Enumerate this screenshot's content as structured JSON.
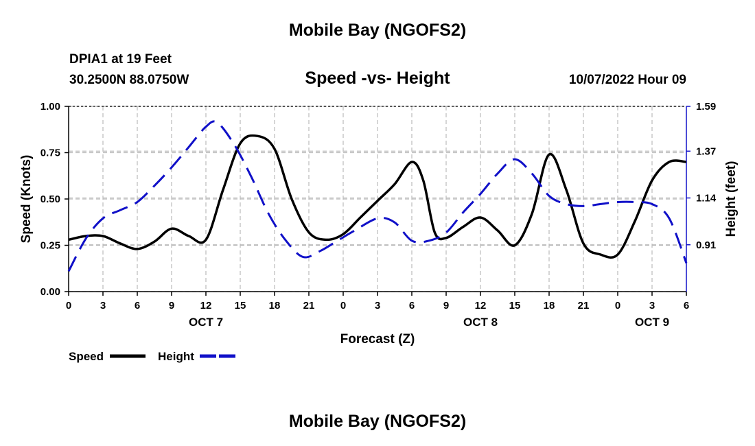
{
  "header": {
    "title": "Mobile Bay (NGOFS2)",
    "station": "DPIA1 at 19 Feet",
    "coords": "30.2500N  88.0750W",
    "subtitle": "Speed -vs- Height",
    "datetime": "10/07/2022 Hour 09"
  },
  "footer": {
    "title": "Mobile Bay (NGOFS2)"
  },
  "colors": {
    "speed": "#000000",
    "height": "#1010c8",
    "grid": "#bbbbbb"
  },
  "chart_data": {
    "type": "line",
    "title": "Speed -vs- Height",
    "xlabel": "Forecast (Z)",
    "ylabel": "Speed (Knots)",
    "y2label": "Height (feet)",
    "x_ticks": [
      0,
      3,
      6,
      9,
      12,
      15,
      18,
      21,
      24,
      27,
      30,
      33,
      36,
      39,
      42,
      45,
      48,
      51,
      54
    ],
    "x_tick_labels": [
      "0",
      "3",
      "6",
      "9",
      "12",
      "15",
      "18",
      "21",
      "0",
      "3",
      "6",
      "9",
      "12",
      "15",
      "18",
      "21",
      "0",
      "3",
      "6"
    ],
    "day_labels": [
      {
        "x": 12,
        "label": "OCT 7"
      },
      {
        "x": 36,
        "label": "OCT 8"
      },
      {
        "x": 51,
        "label": "OCT 9"
      }
    ],
    "xlim": [
      0,
      54
    ],
    "ylim": [
      0,
      1.0
    ],
    "y_ticks": [
      0,
      0.25,
      0.5,
      0.75,
      1.0
    ],
    "y_tick_labels": [
      "0.00",
      "0.25",
      "0.50",
      "0.75",
      "1.00"
    ],
    "y2lim": [
      0.68,
      1.59
    ],
    "y2_ticks": [
      0.91,
      1.14,
      1.37,
      1.59
    ],
    "y2_tick_labels": [
      "0.91",
      "1.14",
      "1.37",
      "1.59"
    ],
    "grid": true,
    "series": [
      {
        "name": "Speed",
        "axis": "left",
        "style": "solid",
        "x": [
          0,
          1.5,
          3,
          4.5,
          6,
          7.5,
          9,
          10.5,
          12,
          13.5,
          15,
          16.5,
          18,
          19.5,
          21,
          22.5,
          24,
          25.5,
          27,
          28.5,
          30,
          31,
          32,
          33,
          34.5,
          36,
          37.5,
          39,
          40.5,
          42,
          43.5,
          45,
          46.5,
          48,
          49.5,
          51,
          52.5,
          54
        ],
        "values": [
          0.28,
          0.3,
          0.3,
          0.26,
          0.23,
          0.27,
          0.34,
          0.3,
          0.28,
          0.55,
          0.8,
          0.84,
          0.77,
          0.5,
          0.32,
          0.28,
          0.31,
          0.4,
          0.49,
          0.58,
          0.7,
          0.6,
          0.32,
          0.29,
          0.35,
          0.4,
          0.33,
          0.25,
          0.42,
          0.74,
          0.55,
          0.26,
          0.2,
          0.2,
          0.38,
          0.6,
          0.7,
          0.7
        ]
      },
      {
        "name": "Height",
        "axis": "right",
        "style": "dashed",
        "x": [
          0,
          1.5,
          3,
          4.5,
          6,
          7.5,
          9,
          10.5,
          12,
          13,
          14.5,
          16,
          17.5,
          19,
          20.5,
          22,
          23.5,
          25,
          27,
          28.5,
          30,
          31.5,
          33,
          34.5,
          36,
          37.5,
          39,
          40.5,
          42,
          43.5,
          45,
          46.5,
          48,
          49.5,
          51,
          52.5,
          54
        ],
        "values": [
          0.78,
          0.94,
          1.04,
          1.08,
          1.12,
          1.2,
          1.29,
          1.39,
          1.49,
          1.51,
          1.4,
          1.24,
          1.06,
          0.93,
          0.85,
          0.88,
          0.93,
          0.98,
          1.04,
          1.02,
          0.93,
          0.93,
          0.97,
          1.07,
          1.16,
          1.26,
          1.33,
          1.26,
          1.15,
          1.11,
          1.1,
          1.11,
          1.12,
          1.12,
          1.11,
          1.04,
          0.82
        ]
      }
    ],
    "legend": [
      {
        "label": "Speed",
        "series": "Speed"
      },
      {
        "label": "Height",
        "series": "Height"
      }
    ],
    "legend_position": "bottom-left"
  }
}
